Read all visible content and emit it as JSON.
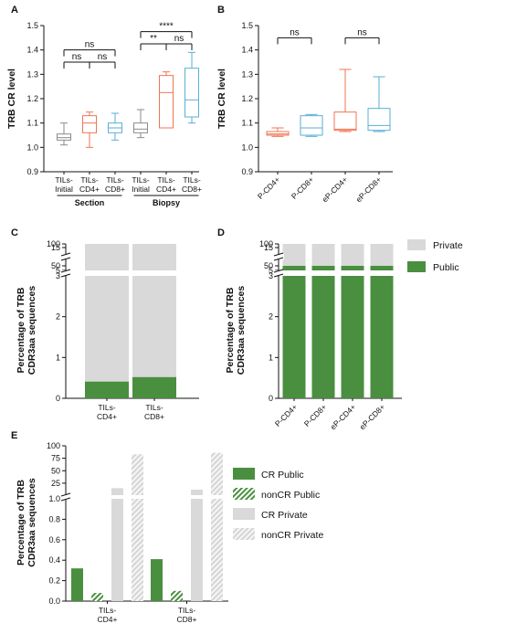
{
  "colors": {
    "grey_box": "#8a8a8a",
    "cd4": "#f07553",
    "cd8": "#5aaed6",
    "public": "#4a8f3f",
    "private": "#d9d9d9",
    "nonCR_private": "#e5e5e5",
    "axis": "#111111"
  },
  "chart_data": [
    {
      "panel": "A",
      "type": "box",
      "ylabel": "TRB CR level",
      "ylim": [
        0.9,
        1.5
      ],
      "yticks": [
        "0.9",
        "1.0",
        "1.1",
        "1.2",
        "1.3",
        "1.4",
        "1.5"
      ],
      "categories": [
        {
          "line1": "TILs-",
          "line2": "Initial",
          "color_key": "grey_box",
          "min": 1.01,
          "q1": 1.03,
          "median": 1.04,
          "q3": 1.055,
          "max": 1.1
        },
        {
          "line1": "TILs-",
          "line2": "CD4+",
          "color_key": "cd4",
          "min": 1.0,
          "q1": 1.06,
          "median": 1.1,
          "q3": 1.13,
          "max": 1.145
        },
        {
          "line1": "TILs-",
          "line2": "CD8+",
          "color_key": "cd8",
          "min": 1.03,
          "q1": 1.06,
          "median": 1.08,
          "q3": 1.1,
          "max": 1.14
        },
        {
          "line1": "TILs-",
          "line2": "Initial",
          "color_key": "grey_box",
          "min": 1.04,
          "q1": 1.06,
          "median": 1.075,
          "q3": 1.1,
          "max": 1.155
        },
        {
          "line1": "TILs-",
          "line2": "CD4+",
          "color_key": "cd4",
          "min": 1.08,
          "q1": 1.08,
          "median": 1.225,
          "q3": 1.295,
          "max": 1.31
        },
        {
          "line1": "TILs-",
          "line2": "CD8+",
          "color_key": "cd8",
          "min": 1.1,
          "q1": 1.125,
          "median": 1.195,
          "q3": 1.325,
          "max": 1.39
        }
      ],
      "groups": [
        {
          "label": "Section",
          "from": 0,
          "to": 2
        },
        {
          "label": "Biopsy",
          "from": 3,
          "to": 5
        }
      ],
      "comparisons": [
        {
          "a": 0,
          "b": 1,
          "level": 1.35,
          "label": "ns"
        },
        {
          "a": 1,
          "b": 2,
          "level": 1.35,
          "label": "ns"
        },
        {
          "a": 0,
          "b": 2,
          "level": 1.4,
          "label": "ns"
        },
        {
          "a": 3,
          "b": 4,
          "level": 1.425,
          "label": "**"
        },
        {
          "a": 4,
          "b": 5,
          "level": 1.425,
          "label": "ns"
        },
        {
          "a": 3,
          "b": 5,
          "level": 1.475,
          "label": "****"
        }
      ]
    },
    {
      "panel": "B",
      "type": "box",
      "ylabel": "TRB CR level",
      "ylim": [
        0.9,
        1.5
      ],
      "yticks": [
        "0.9",
        "1.0",
        "1.1",
        "1.2",
        "1.3",
        "1.4",
        "1.5"
      ],
      "categories": [
        {
          "label": "P-CD4+",
          "color_key": "cd4",
          "min": 1.045,
          "q1": 1.05,
          "median": 1.055,
          "q3": 1.065,
          "max": 1.08
        },
        {
          "label": "P-CD8+",
          "color_key": "cd8",
          "min": 1.045,
          "q1": 1.05,
          "median": 1.08,
          "q3": 1.13,
          "max": 1.135
        },
        {
          "label": "eP-CD4+",
          "color_key": "cd4",
          "min": 1.065,
          "q1": 1.07,
          "median": 1.075,
          "q3": 1.145,
          "max": 1.32
        },
        {
          "label": "eP-CD8+",
          "color_key": "cd8",
          "min": 1.065,
          "q1": 1.07,
          "median": 1.09,
          "q3": 1.16,
          "max": 1.29
        }
      ],
      "comparisons": [
        {
          "a": 0,
          "b": 1,
          "level": 1.45,
          "label": "ns"
        },
        {
          "a": 2,
          "b": 3,
          "level": 1.45,
          "label": "ns"
        }
      ]
    },
    {
      "panel": "C",
      "type": "bar",
      "stacked": true,
      "ylabel": [
        "Percentage of TRB",
        "CDR3aa sequences"
      ],
      "broken_axis": true,
      "yticks_bottom": [
        "0",
        "1",
        "2",
        "3"
      ],
      "yticks_mid": [
        "5",
        "15"
      ],
      "yticks_top": [
        "50",
        "100"
      ],
      "categories": [
        {
          "line1": "TILs-",
          "line2": "CD4+"
        },
        {
          "line1": "TILs-",
          "line2": "CD8+"
        }
      ],
      "series": [
        {
          "name": "Public",
          "color_key": "public",
          "values": [
            0.41,
            0.52
          ]
        },
        {
          "name": "Private",
          "color_key": "private",
          "values": [
            99.59,
            99.48
          ]
        }
      ]
    },
    {
      "panel": "D",
      "type": "bar",
      "stacked": true,
      "ylabel": [
        "Percentage of TRB",
        "CDR3aa sequences"
      ],
      "broken_axis": true,
      "yticks_bottom": [
        "0",
        "1",
        "2",
        "3"
      ],
      "yticks_mid": [
        "5",
        "15"
      ],
      "yticks_top": [
        "50",
        "100"
      ],
      "categories": [
        {
          "label": "P-CD4+"
        },
        {
          "label": "P-CD8+"
        },
        {
          "label": "eP-CD4+"
        },
        {
          "label": "eP-CD8+"
        }
      ],
      "series": [
        {
          "name": "Public",
          "color_key": "public",
          "values": [
            9.5,
            10,
            7,
            8
          ]
        },
        {
          "name": "Private",
          "color_key": "private",
          "values": [
            90.5,
            90,
            93,
            92
          ]
        }
      ],
      "legend": [
        {
          "name": "Private",
          "color_key": "private"
        },
        {
          "name": "Public",
          "color_key": "public"
        }
      ]
    },
    {
      "panel": "E",
      "type": "bar",
      "ylabel": [
        "Percentage of TRB",
        "CDR3aa sequences"
      ],
      "broken_axis": true,
      "yticks_bottom": [
        "0.0",
        "0.2",
        "0.4",
        "0.6",
        "0.8",
        "1.0"
      ],
      "yticks_top": [
        "25",
        "50",
        "75",
        "100"
      ],
      "categories": [
        {
          "line1": "TILs-",
          "line2": "CD4+"
        },
        {
          "line1": "TILs-",
          "line2": "CD8+"
        }
      ],
      "series": [
        {
          "name": "CR Public",
          "pattern": "solid_green",
          "values": [
            0.32,
            0.41
          ]
        },
        {
          "name": "nonCR Public",
          "pattern": "hatch_green",
          "values": [
            0.08,
            0.1
          ]
        },
        {
          "name": "CR Private",
          "pattern": "solid_grey",
          "values": [
            15,
            12
          ]
        },
        {
          "name": "nonCR Private",
          "pattern": "hatch_grey",
          "values": [
            83,
            86
          ]
        }
      ]
    }
  ]
}
